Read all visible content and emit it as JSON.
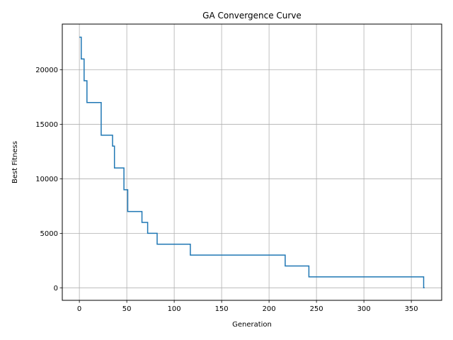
{
  "chart_data": {
    "type": "line",
    "title": "GA Convergence Curve",
    "xlabel": "Generation",
    "ylabel": "Best Fitness",
    "xlim": [
      -18,
      382
    ],
    "ylim": [
      -1150,
      24200
    ],
    "x_ticks": [
      0,
      50,
      100,
      150,
      200,
      250,
      300,
      350
    ],
    "y_ticks": [
      0,
      5000,
      10000,
      15000,
      20000
    ],
    "x_tick_labels": [
      "0",
      "50",
      "100",
      "150",
      "200",
      "250",
      "300",
      "350"
    ],
    "y_tick_labels": [
      "0",
      "5000",
      "10000",
      "15000",
      "20000"
    ],
    "grid": true,
    "series": [
      {
        "color": "#1f77b4",
        "step": "post",
        "x": [
          0,
          2,
          5,
          8,
          23,
          35,
          37,
          47,
          51,
          66,
          70,
          72,
          82,
          117,
          217,
          242,
          363,
          364
        ],
        "y": [
          23000,
          21000,
          19000,
          17000,
          14000,
          13000,
          11000,
          9000,
          7000,
          6000,
          6000,
          5000,
          4000,
          3000,
          2000,
          1000,
          0,
          0
        ]
      }
    ]
  }
}
